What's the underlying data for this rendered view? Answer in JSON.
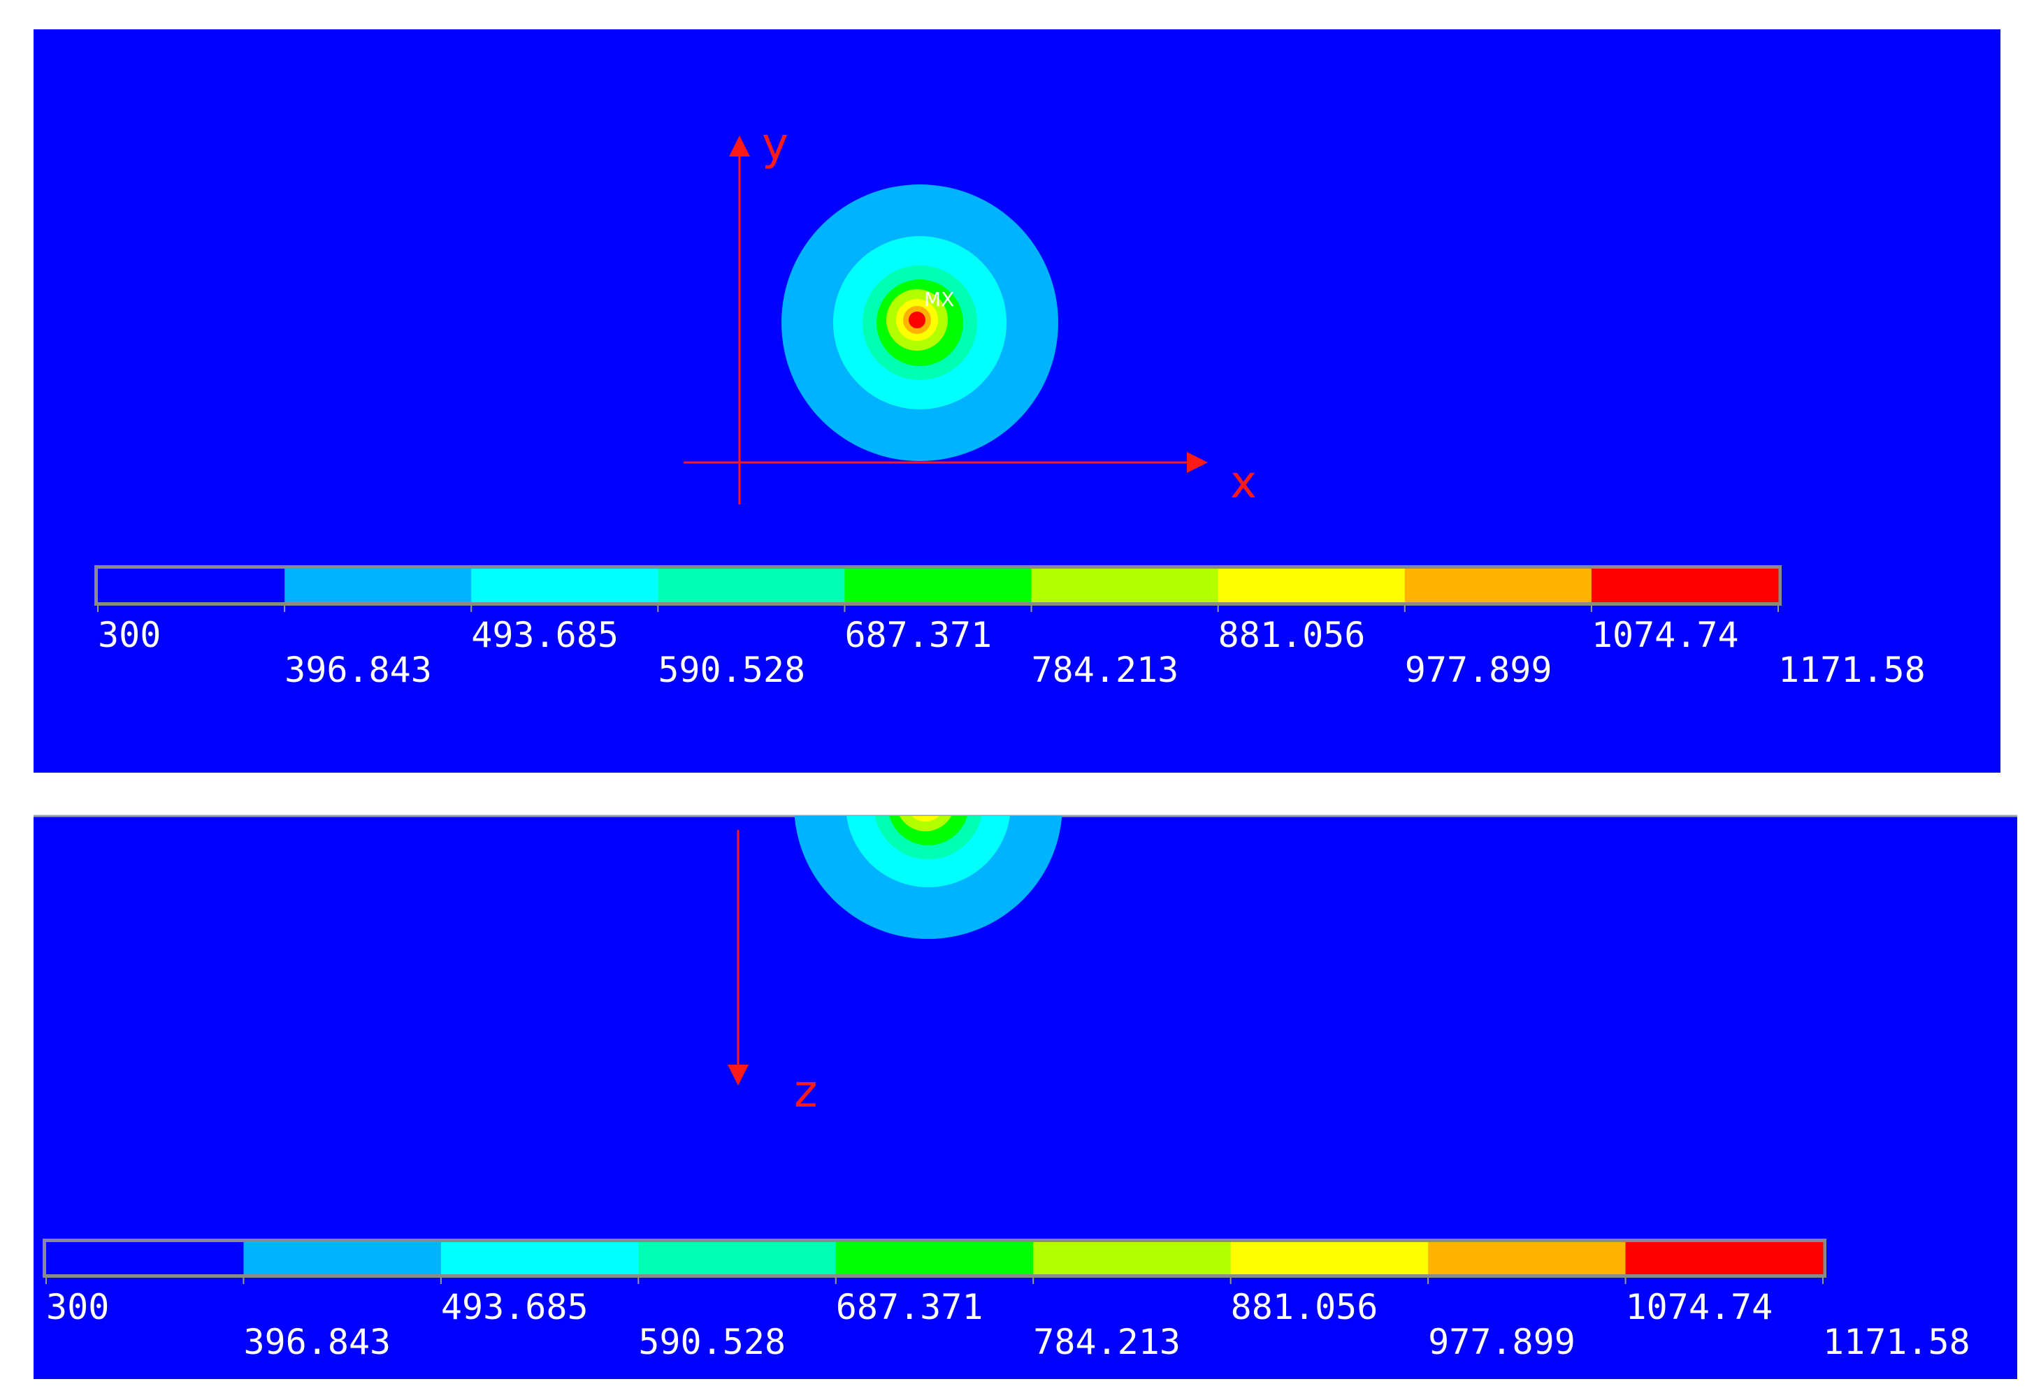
{
  "background_color": "#0000ff",
  "axis_color": "#ff1a1a",
  "top_view": {
    "axis_x_label": "x",
    "axis_y_label": "y",
    "max_marker": "MX"
  },
  "section_view": {
    "axis_z_label": "z"
  },
  "legend": {
    "colors": [
      "#0000ff",
      "#00b3ff",
      "#00ffff",
      "#00ffb3",
      "#00ff00",
      "#b3ff00",
      "#ffff00",
      "#ffb300",
      "#ff0000"
    ],
    "ticks": [
      "300",
      "396.843",
      "493.685",
      "590.528",
      "687.371",
      "784.213",
      "881.056",
      "977.899",
      "1074.74",
      "1171.58"
    ]
  },
  "contour_colors": [
    "#00b3ff",
    "#00ffff",
    "#00ffb3",
    "#00ff00",
    "#b3ff00",
    "#ffff00",
    "#ffb300",
    "#ff0000"
  ]
}
